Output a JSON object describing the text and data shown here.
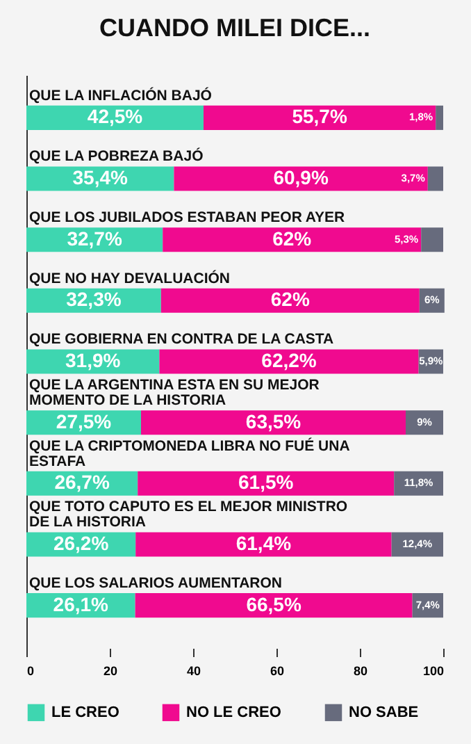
{
  "chart_data": {
    "type": "bar",
    "orientation": "horizontal",
    "stacked": true,
    "title": "CUANDO MILEI DICE...",
    "categories": [
      "QUE LA INFLACIÓN BAJÓ",
      "QUE LA POBREZA BAJÓ",
      "QUE LOS JUBILADOS ESTABAN PEOR AYER",
      "QUE NO HAY DEVALUACIÓN",
      "QUE GOBIERNA EN CONTRA DE LA CASTA",
      "QUE LA ARGENTINA ESTA EN SU MEJOR MOMENTO DE LA HISTORIA",
      "QUE LA CRIPTOMONEDA LIBRA NO FUÉ UNA ESTAFA",
      "QUE TOTO CAPUTO ES EL MEJOR MINISTRO DE LA HISTORIA",
      "QUE LOS SALARIOS AUMENTARON"
    ],
    "series": [
      {
        "name": "LE CREO",
        "color": "#3ed6b0",
        "values": [
          42.5,
          35.4,
          32.7,
          32.3,
          31.9,
          27.5,
          26.7,
          26.2,
          26.1
        ],
        "value_labels": [
          "42,5%",
          "35,4%",
          "32,7%",
          "32,3%",
          "31,9%",
          "27,5%",
          "26,7%",
          "26,2%",
          "26,1%"
        ]
      },
      {
        "name": "NO LE CREO",
        "color": "#f00a8f",
        "values": [
          55.7,
          60.9,
          62,
          62,
          62.2,
          63.5,
          61.5,
          61.4,
          66.5
        ],
        "value_labels": [
          "55,7%",
          "60,9%",
          "62%",
          "62%",
          "62,2%",
          "63,5%",
          "61,5%",
          "61,4%",
          "66,5%"
        ]
      },
      {
        "name": "NO SABE",
        "color": "#676b7d",
        "values": [
          1.8,
          3.7,
          5.3,
          6,
          5.9,
          9,
          11.8,
          12.4,
          7.4
        ],
        "value_labels": [
          "1,8%",
          "3,7%",
          "5,3%",
          "6%",
          "5,9%",
          "9%",
          "11,8%",
          "12,4%",
          "7,4%"
        ]
      }
    ],
    "xlim": [
      0,
      100
    ],
    "xticks": [
      0,
      20,
      40,
      60,
      80,
      100
    ],
    "legend": "bottom",
    "grid": false
  }
}
